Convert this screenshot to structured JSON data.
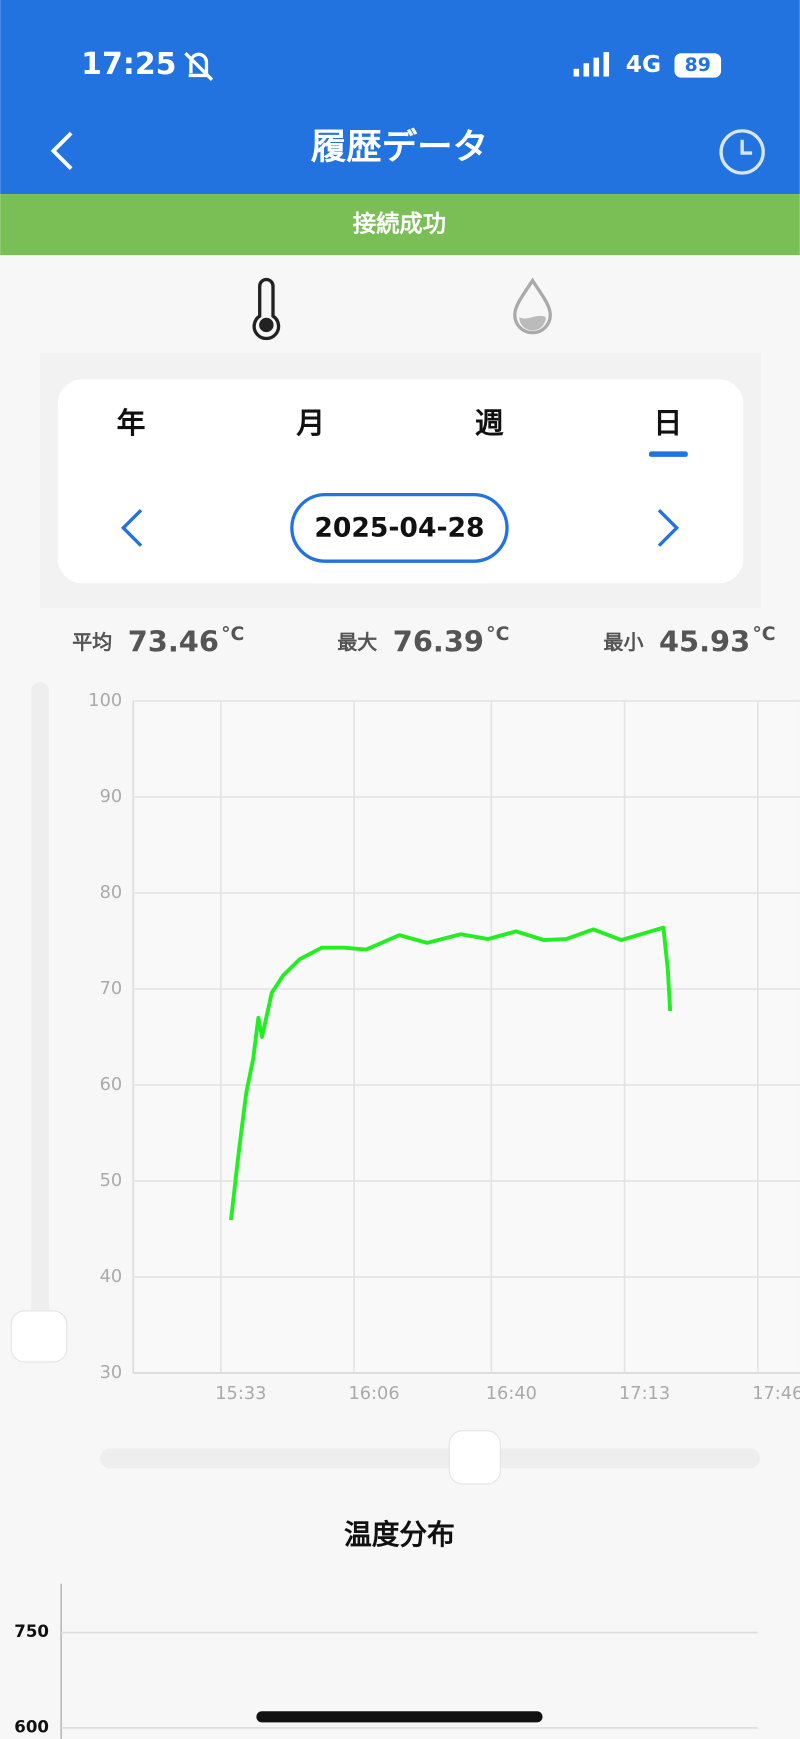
{
  "status_bar": {
    "time": "17:25",
    "network": "4G",
    "battery": "89"
  },
  "header": {
    "title": "履歴データ"
  },
  "banner": "接続成功",
  "tabs": [
    "年",
    "月",
    "週",
    "日"
  ],
  "date": "2025-04-28",
  "stats": [
    {
      "label": "平均",
      "value": 73.46,
      "unit": "°C"
    },
    {
      "label": "最大",
      "value": 76.39,
      "unit": "°C"
    },
    {
      "label": "最小",
      "value": 45.93,
      "unit": "°C"
    }
  ],
  "chart_data": [
    {
      "type": "line",
      "color": "#22ee22",
      "grid": true,
      "x": [
        935.5,
        937.4,
        939.3,
        941.0,
        942.3,
        943.2,
        945.6,
        948.4,
        952.5,
        958.0,
        963.5,
        969.0,
        977.2,
        984.1,
        992.4,
        999.2,
        1006.1,
        1013.0,
        1018.5,
        1025.3,
        1032.2,
        1042.6,
        1043.7,
        1044.3
      ],
      "values": [
        45.93,
        52.9,
        59.2,
        62.7,
        67.0,
        65.0,
        69.6,
        71.4,
        73.1,
        74.3,
        74.3,
        74.1,
        75.6,
        74.8,
        75.7,
        75.2,
        76.0,
        75.1,
        75.2,
        76.2,
        75.1,
        76.39,
        72.0,
        67.7
      ],
      "xlim": [
        911.3,
        1076.4
      ],
      "xticks": [
        {
          "value": 933,
          "label": "15:33"
        },
        {
          "value": 966,
          "label": "16:06"
        },
        {
          "value": 1000,
          "label": "16:40"
        },
        {
          "value": 1033,
          "label": "17:13"
        },
        {
          "value": 1066,
          "label": "17:46"
        }
      ],
      "ylim": [
        30,
        100
      ],
      "yticks": [
        30,
        40,
        50,
        60,
        70,
        80,
        90,
        100
      ]
    },
    {
      "type": "bar",
      "title": "温度分布",
      "grid": true,
      "ylim": [
        600,
        750
      ],
      "yticks": [
        600,
        750
      ]
    }
  ]
}
